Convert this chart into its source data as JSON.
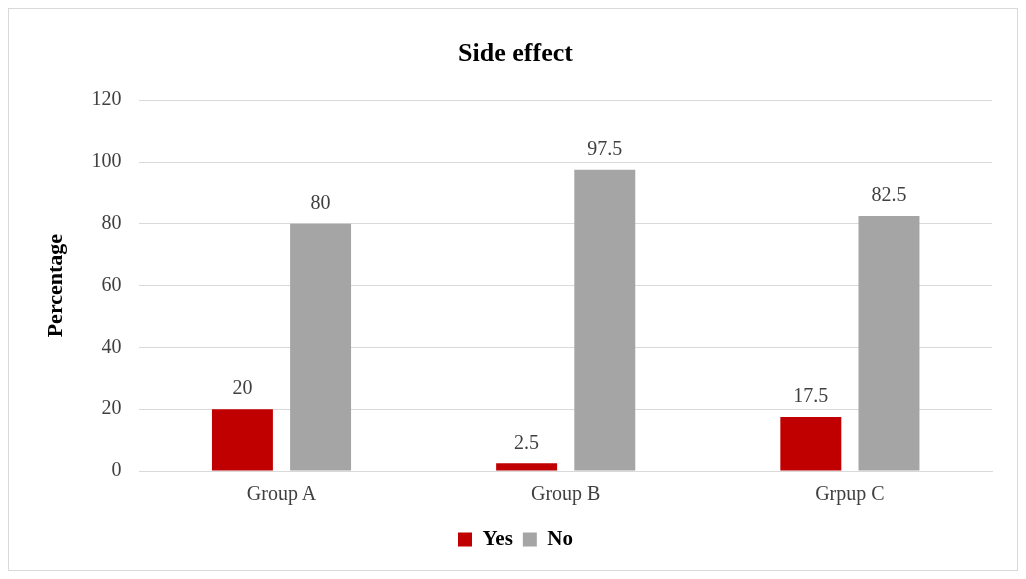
{
  "chart_data": {
    "type": "bar",
    "title": "Side effect",
    "ylabel": "Percentage",
    "categories": [
      "Group A",
      "Group B",
      "Grpup C"
    ],
    "series": [
      {
        "name": "Yes",
        "color": "#c00000",
        "values": [
          20,
          2.5,
          17.5
        ]
      },
      {
        "name": "No",
        "color": "#a5a5a5",
        "values": [
          80,
          97.5,
          82.5
        ]
      }
    ],
    "ylim": [
      0,
      120
    ],
    "yticks": [
      0,
      20,
      40,
      60,
      80,
      100,
      120
    ],
    "grid": "y",
    "legend": "bottom",
    "data_labels": true
  }
}
